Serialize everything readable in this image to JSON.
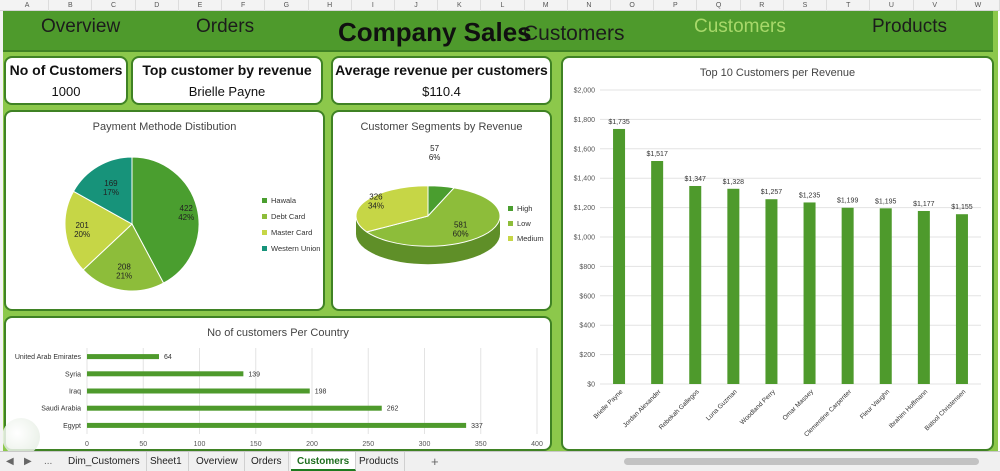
{
  "spreadsheet": {
    "columns": [
      "A",
      "B",
      "C",
      "D",
      "E",
      "F",
      "G",
      "H",
      "I",
      "J",
      "K",
      "L",
      "M",
      "N",
      "O",
      "P",
      "Q",
      "R",
      "S",
      "T",
      "U",
      "V",
      "W"
    ],
    "sheet_tabs": [
      "Dim_Customers",
      "Sheet1",
      "Overview",
      "Orders",
      "Customers",
      "Products"
    ],
    "active_tab": "Customers",
    "nav_left": "◀",
    "nav_right": "▶",
    "more_tabs": "...",
    "add_sheet": "+"
  },
  "nav": {
    "overview": "Overview",
    "orders": "Orders",
    "title": "Company Sales",
    "customers_dup": "Customers",
    "customers": "Customers",
    "products": "Products",
    "active_color": "#a8d86a"
  },
  "kpis": {
    "customers_label": "No of Customers",
    "customers_value": "1000",
    "top_customer_label": "Top customer by revenue",
    "top_customer_value": "Brielle Payne",
    "avg_label": "Average revenue per customers",
    "avg_value": "$110.4"
  },
  "colors": {
    "dashboard_bg": "#8cc84b",
    "nav_bg": "#4e9a2c",
    "bar": "#4e9a2c",
    "hawala": "#4a9e2f",
    "debt_card": "#8dbd3a",
    "master_card": "#c6d646",
    "western_union": "#17937a",
    "high": "#4a9e2f",
    "low": "#8dbd3a",
    "medium": "#c6d646"
  },
  "chart_data": [
    {
      "type": "pie",
      "title": "Payment Methode Distibution",
      "categories": [
        "Hawala",
        "Debt Card",
        "Master Card",
        "Western Union"
      ],
      "values": [
        422,
        208,
        201,
        169
      ],
      "percent_labels": [
        "42%",
        "21%",
        "20%",
        "17%"
      ],
      "legend_position": "right"
    },
    {
      "type": "pie",
      "title": "Customer Segments by Revenue",
      "categories": [
        "High",
        "Low",
        "Medium"
      ],
      "values": [
        57,
        581,
        326
      ],
      "percent_labels": [
        "6%",
        "60%",
        "34%"
      ],
      "legend_position": "right"
    },
    {
      "type": "bar",
      "title": "No of customers Per Country",
      "orientation": "horizontal",
      "categories": [
        "United Arab Emirates",
        "Syria",
        "Iraq",
        "Saudi Arabia",
        "Egypt"
      ],
      "values": [
        64,
        139,
        198,
        262,
        337
      ],
      "xlim": [
        0,
        400
      ],
      "ticks": [
        "0",
        "50",
        "100",
        "150",
        "200",
        "250",
        "300",
        "350",
        "400"
      ],
      "grid": true
    },
    {
      "type": "bar",
      "title": "Top 10 Customers per Revenue",
      "categories": [
        "Brielle Payne",
        "Jordan Alexander",
        "Rebekah Gallegos",
        "Luna Guzman",
        "Woodland Perry",
        "Omar Massey",
        "Clementine Carpenter",
        "Fleur Vaughn",
        "Ibrahim Hoffmann",
        "Batool Christensen"
      ],
      "values": [
        1735,
        1517,
        1347,
        1328,
        1257,
        1235,
        1199,
        1195,
        1177,
        1155
      ],
      "value_labels": [
        "$1,735",
        "$1,517",
        "$1,347",
        "$1,328",
        "$1,257",
        "$1,235",
        "$1,199",
        "$1,195",
        "$1,177",
        "$1,155"
      ],
      "ylim": [
        0,
        2000
      ],
      "ticks": [
        "$0",
        "$200",
        "$400",
        "$600",
        "$800",
        "$1,000",
        "$1,200",
        "$1,400",
        "$1,600",
        "$1,800",
        "$2,000"
      ],
      "grid": true
    }
  ]
}
